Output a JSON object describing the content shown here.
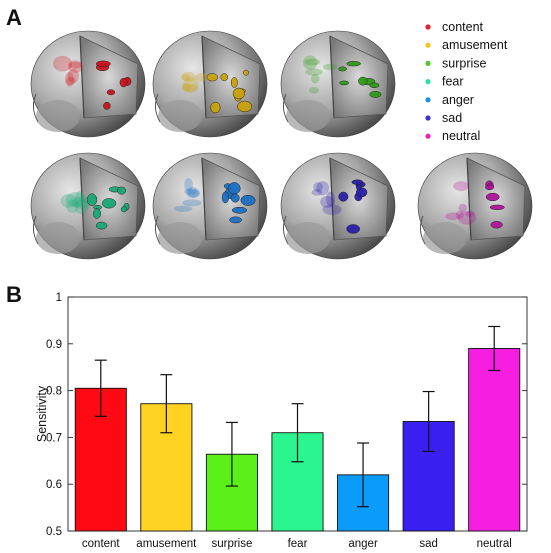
{
  "panels": {
    "a_label": "A",
    "b_label": "B"
  },
  "legend": {
    "entries": [
      {
        "label": "content",
        "color": "#e8202a"
      },
      {
        "label": "amusement",
        "color": "#f2c419"
      },
      {
        "label": "surprise",
        "color": "#4ecb28"
      },
      {
        "label": "fear",
        "color": "#2ee0a0"
      },
      {
        "label": "anger",
        "color": "#1b8fe6"
      },
      {
        "label": "sad",
        "color": "#3b2fd6"
      },
      {
        "label": "neutral",
        "color": "#e022d2"
      }
    ]
  },
  "brains": {
    "highlight_colors": [
      "#c8141e",
      "#c9a20d",
      "#2f9a19",
      "#19a875",
      "#1d6fc2",
      "#2a1fa8",
      "#b2139c"
    ],
    "shell_color": "#b5b5b5"
  },
  "chart_data": {
    "type": "bar",
    "categories": [
      "content",
      "amusement",
      "surprise",
      "fear",
      "anger",
      "sad",
      "neutral"
    ],
    "values": [
      0.805,
      0.772,
      0.664,
      0.71,
      0.62,
      0.734,
      0.89
    ],
    "errors": [
      0.06,
      0.062,
      0.068,
      0.062,
      0.068,
      0.064,
      0.047
    ],
    "colors": [
      "#ff0a14",
      "#ffd31f",
      "#5af017",
      "#2bf58f",
      "#0b9bfa",
      "#3a20f0",
      "#f51ee1"
    ],
    "ylabel": "Sensitivity",
    "xlabel": "",
    "ylim": [
      0.5,
      1
    ],
    "yticks": [
      "0.5",
      "0.6",
      "0.7",
      "0.8",
      "0.9",
      "1"
    ]
  }
}
